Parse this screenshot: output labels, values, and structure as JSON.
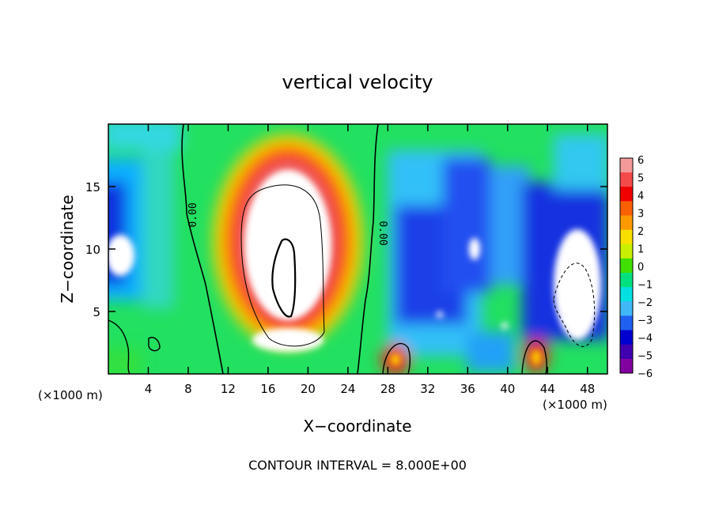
{
  "chart_data": {
    "type": "heatmap",
    "title": "vertical velocity",
    "xlabel": "X−coordinate",
    "ylabel": "Z−coordinate",
    "x_unit_left": "(×1000 m)",
    "x_unit_right": "(×1000 m)",
    "footer": "CONTOUR INTERVAL = 8.000E+00",
    "xlim": [
      0,
      50
    ],
    "ylim": [
      0,
      20
    ],
    "x_ticks": [
      4,
      8,
      12,
      16,
      20,
      24,
      28,
      32,
      36,
      40,
      44,
      48
    ],
    "x_tick_labels": [
      "4",
      "8",
      "12",
      "16",
      "20",
      "24",
      "28",
      "32",
      "36",
      "40",
      "44",
      "48"
    ],
    "y_ticks": [
      5,
      10,
      15
    ],
    "y_tick_labels": [
      "5",
      "10",
      "15"
    ],
    "colorbar": {
      "min": -6,
      "max": 6,
      "labels": [
        "6",
        "5",
        "4",
        "3",
        "2",
        "1",
        "0",
        "−1",
        "−2",
        "−3",
        "−4",
        "−5",
        "−6"
      ],
      "colors": [
        "#f49a9a",
        "#f44a4a",
        "#f00000",
        "#f86000",
        "#fc9a00",
        "#f8e000",
        "#c8f000",
        "#40e000",
        "#00e080",
        "#00e0e0",
        "#40b8f8",
        "#2060f0",
        "#0000d0",
        "#4000b0",
        "#8000a0"
      ]
    },
    "contour_labels": [
      "0.00",
      "0.00"
    ]
  }
}
